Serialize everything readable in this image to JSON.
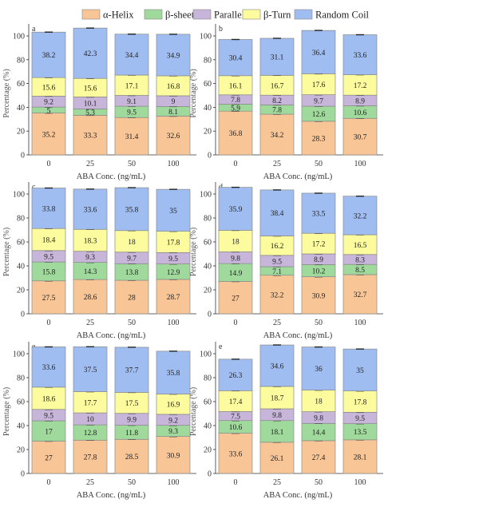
{
  "chart_data": {
    "type": "bar",
    "stacked": true,
    "legend": {
      "placement": "top",
      "entries": [
        "α-Helix",
        "β-sheet",
        "Parallel",
        "β-Turn",
        "Random Coil"
      ]
    },
    "colors": [
      "#f8c596",
      "#a0d99c",
      "#c7b5da",
      "#fcfc9e",
      "#9fbdf1"
    ],
    "categories": [
      "0",
      "25",
      "50",
      "100"
    ],
    "xlabel": "ABA Conc. (ng/mL)",
    "ylabel": "Percentage (%)",
    "ylim": [
      0,
      110
    ],
    "yticks": [
      0,
      20,
      40,
      60,
      80,
      100
    ],
    "panels": [
      {
        "label": "a",
        "series": [
          {
            "name": "α-Helix",
            "values": [
              35.2,
              33.3,
              31.4,
              32.6
            ]
          },
          {
            "name": "β-sheet",
            "values": [
              5,
              5.3,
              9.5,
              8.1
            ]
          },
          {
            "name": "Parallel",
            "values": [
              9.2,
              10.1,
              9.1,
              9
            ]
          },
          {
            "name": "β-Turn",
            "values": [
              15.6,
              15.6,
              17.1,
              16.8
            ]
          },
          {
            "name": "Random Coil",
            "values": [
              38.2,
              42.3,
              34.4,
              34.9
            ]
          }
        ]
      },
      {
        "label": "b",
        "series": [
          {
            "name": "α-Helix",
            "values": [
              36.8,
              34.2,
              28.3,
              30.7
            ]
          },
          {
            "name": "β-sheet",
            "values": [
              5.9,
              7.8,
              12.6,
              10.6
            ]
          },
          {
            "name": "Parallel",
            "values": [
              7.8,
              8.2,
              9.7,
              8.9
            ]
          },
          {
            "name": "β-Turn",
            "values": [
              16.1,
              16.7,
              17.6,
              17.2
            ]
          },
          {
            "name": "Random Coil",
            "values": [
              30.4,
              31.1,
              36.4,
              33.6
            ]
          }
        ]
      },
      {
        "label": "c",
        "series": [
          {
            "name": "α-Helix",
            "values": [
              27.5,
              28.6,
              28,
              28.7
            ]
          },
          {
            "name": "β-sheet",
            "values": [
              15.8,
              14.3,
              13.8,
              12.9
            ]
          },
          {
            "name": "Parallel",
            "values": [
              9.5,
              9.3,
              9.7,
              9.5
            ]
          },
          {
            "name": "β-Turn",
            "values": [
              18.4,
              18.3,
              18,
              17.8
            ]
          },
          {
            "name": "Random Coil",
            "values": [
              33.8,
              33.6,
              35.8,
              35
            ]
          }
        ]
      },
      {
        "label": "d",
        "series": [
          {
            "name": "α-Helix",
            "values": [
              27,
              32.2,
              30.9,
              32.7
            ]
          },
          {
            "name": "β-sheet",
            "values": [
              14.9,
              7.1,
              10.2,
              8.5
            ]
          },
          {
            "name": "Parallel",
            "values": [
              9.8,
              9.5,
              8.9,
              8.3
            ]
          },
          {
            "name": "β-Turn",
            "values": [
              18,
              16.2,
              17.2,
              16.5
            ]
          },
          {
            "name": "Random Coil",
            "values": [
              35.9,
              38.4,
              33.5,
              32.2
            ]
          }
        ]
      },
      {
        "label": "e",
        "series": [
          {
            "name": "α-Helix",
            "values": [
              27,
              27.8,
              28.5,
              30.9
            ]
          },
          {
            "name": "β-sheet",
            "values": [
              17,
              12.8,
              11.8,
              9.3
            ]
          },
          {
            "name": "Parallel",
            "values": [
              9.5,
              10,
              9.9,
              9.2
            ]
          },
          {
            "name": "β-Turn",
            "values": [
              18.6,
              17.7,
              17.5,
              16.9
            ]
          },
          {
            "name": "Random Coil",
            "values": [
              33.6,
              37.5,
              37.7,
              35.8
            ]
          }
        ]
      },
      {
        "label": "e",
        "series": [
          {
            "name": "α-Helix",
            "values": [
              33.6,
              26.1,
              27.4,
              28.1
            ]
          },
          {
            "name": "β-sheet",
            "values": [
              10.6,
              18.1,
              14.4,
              13.5
            ]
          },
          {
            "name": "Parallel",
            "values": [
              7.5,
              9.8,
              9.8,
              9.5
            ]
          },
          {
            "name": "β-Turn",
            "values": [
              17.4,
              18.7,
              18,
              17.8
            ]
          },
          {
            "name": "Random Coil",
            "values": [
              26.3,
              34.6,
              36,
              35
            ]
          }
        ]
      }
    ]
  }
}
